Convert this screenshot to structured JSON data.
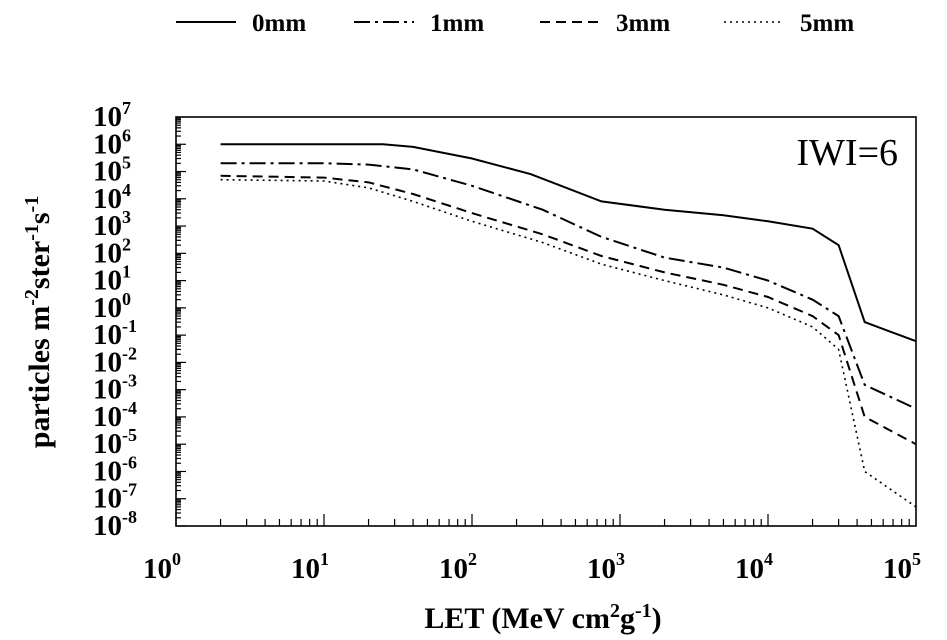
{
  "chart_data": {
    "type": "line",
    "title": "",
    "annotation": "IWI=6",
    "xlabel": {
      "prefix": "LET (MeV cm",
      "sup1": "2",
      "mid": "g",
      "sup2": "-1",
      "suffix": ")"
    },
    "ylabel": {
      "p1": "particles m",
      "s1": "-2",
      "p2": "ster",
      "s2": "-1",
      "p3": "s",
      "s3": "-1"
    },
    "x_scale": "log",
    "y_scale": "log",
    "xlim": [
      1,
      100000
    ],
    "ylim": [
      1e-08,
      10000000.0
    ],
    "x_ticks": [
      {
        "base": "10",
        "exp": "0",
        "value": 1
      },
      {
        "base": "10",
        "exp": "1",
        "value": 10
      },
      {
        "base": "10",
        "exp": "2",
        "value": 100
      },
      {
        "base": "10",
        "exp": "3",
        "value": 1000
      },
      {
        "base": "10",
        "exp": "4",
        "value": 10000
      },
      {
        "base": "10",
        "exp": "5",
        "value": 100000
      }
    ],
    "y_ticks": [
      {
        "base": "10",
        "exp": "7",
        "value": 10000000.0
      },
      {
        "base": "10",
        "exp": "6",
        "value": 1000000.0
      },
      {
        "base": "10",
        "exp": "5",
        "value": 100000.0
      },
      {
        "base": "10",
        "exp": "4",
        "value": 10000.0
      },
      {
        "base": "10",
        "exp": "3",
        "value": 1000.0
      },
      {
        "base": "10",
        "exp": "2",
        "value": 100.0
      },
      {
        "base": "10",
        "exp": "1",
        "value": 10.0
      },
      {
        "base": "10",
        "exp": "0",
        "value": 1
      },
      {
        "base": "10",
        "exp": "-1",
        "value": 0.1
      },
      {
        "base": "10",
        "exp": "-2",
        "value": 0.01
      },
      {
        "base": "10",
        "exp": "-3",
        "value": 0.001
      },
      {
        "base": "10",
        "exp": "-4",
        "value": 0.0001
      },
      {
        "base": "10",
        "exp": "-5",
        "value": 1e-05
      },
      {
        "base": "10",
        "exp": "-6",
        "value": 1e-06
      },
      {
        "base": "10",
        "exp": "-7",
        "value": 1e-07
      },
      {
        "base": "10",
        "exp": "-8",
        "value": 1e-08
      }
    ],
    "grid": false,
    "legend_position": "top",
    "series": [
      {
        "name": "0mm",
        "style": "solid",
        "x": [
          2,
          10,
          25,
          40,
          100,
          250,
          750,
          2000,
          5000,
          10000,
          20000,
          30000,
          45000,
          100000
        ],
        "y": [
          1000000.0,
          1000000.0,
          1000000.0,
          800000.0,
          300000.0,
          80000.0,
          8000.0,
          4000.0,
          2500.0,
          1500.0,
          800.0,
          200.0,
          0.3,
          0.06
        ]
      },
      {
        "name": "1mm",
        "style": "dashdot",
        "x": [
          2,
          10,
          20,
          40,
          100,
          300,
          750,
          2000,
          5000,
          10000,
          20000,
          30000,
          45000,
          100000
        ],
        "y": [
          200000.0,
          200000.0,
          180000.0,
          120000.0,
          30000.0,
          4000.0,
          400.0,
          70.0,
          30.0,
          10.0,
          2.0,
          0.5,
          0.0015,
          0.0002
        ]
      },
      {
        "name": "3mm",
        "style": "dashed",
        "x": [
          2,
          10,
          20,
          40,
          100,
          300,
          750,
          2000,
          5000,
          10000,
          20000,
          30000,
          45000,
          100000
        ],
        "y": [
          70000.0,
          60000.0,
          40000.0,
          15000.0,
          3000.0,
          500.0,
          80.0,
          20.0,
          7.0,
          2.5,
          0.5,
          0.1,
          0.0001,
          1e-05
        ]
      },
      {
        "name": "5mm",
        "style": "dotted",
        "x": [
          2,
          10,
          20,
          40,
          100,
          300,
          750,
          2000,
          5000,
          10000,
          20000,
          30000,
          45000,
          100000
        ],
        "y": [
          50000.0,
          45000.0,
          25000.0,
          8000.0,
          1500.0,
          250.0,
          40.0,
          10.0,
          3.0,
          1.0,
          0.2,
          0.03,
          1e-06,
          5e-08
        ]
      }
    ]
  }
}
